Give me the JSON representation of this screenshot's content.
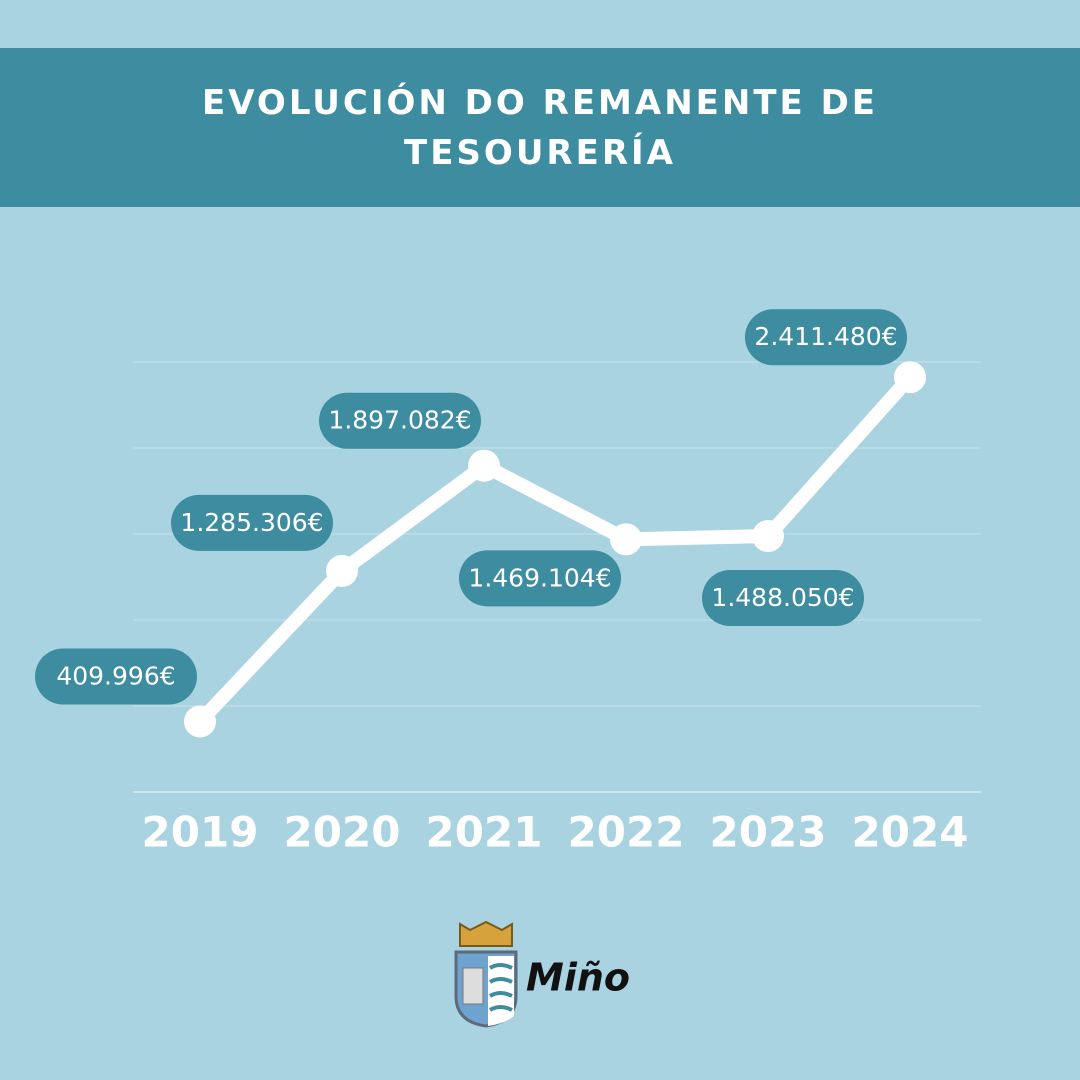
{
  "chart_data": {
    "type": "line",
    "title": "EVOLUCIÓN DO REMANENTE DE TESOURERÍA",
    "categories": [
      "2019",
      "2020",
      "2021",
      "2022",
      "2023",
      "2024"
    ],
    "values": [
      409996,
      1285306,
      1897082,
      1469104,
      1488050,
      2411480
    ],
    "value_labels": [
      "409.996€",
      "1.285.306€",
      "1.897.082€",
      "1.469.104€",
      "1.488.050€",
      "2.411.480€"
    ],
    "color": "#ffffff",
    "ylim": [
      0,
      2500000
    ],
    "yticks": [
      0,
      500000,
      1000000,
      1500000,
      2000000,
      2500000
    ],
    "grid": true
  },
  "logo": {
    "text": "Miño"
  }
}
